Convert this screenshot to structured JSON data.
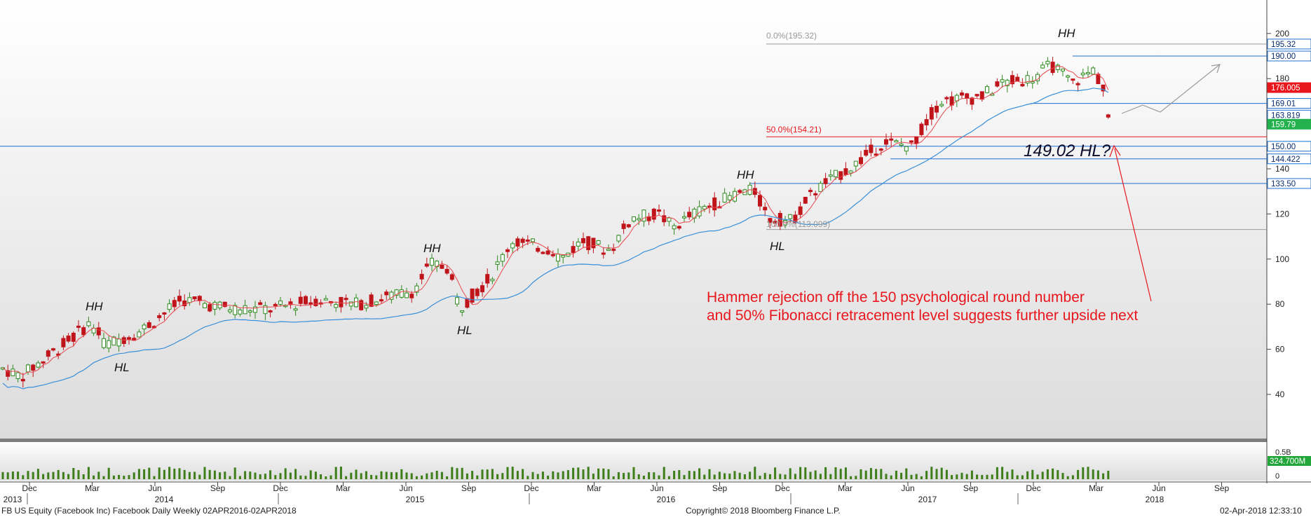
{
  "chart_data": {
    "type": "candlestick",
    "title": "FB US Equity (Facebook Inc) Facebook Daily  Weekly 02APR2016-02APR2018",
    "ylim": [
      20,
      210
    ],
    "y_ticks": [
      40,
      60,
      80,
      100,
      120,
      140,
      160,
      180,
      200
    ],
    "volume_ticks": [
      "0.5B",
      "0"
    ],
    "volume_label": "324.700M",
    "x_month_labels": [
      "Dec",
      "Mar",
      "Jun",
      "Sep",
      "Dec",
      "Mar",
      "Jun",
      "Sep",
      "Dec",
      "Mar",
      "Jun",
      "Sep",
      "Dec",
      "Mar",
      "Jun",
      "Sep",
      "Dec",
      "Mar",
      "Jun",
      "Sep"
    ],
    "x_year_labels": [
      "2013",
      "2014",
      "2015",
      "2016",
      "2017",
      "2018"
    ],
    "price_levels": [
      {
        "label": "195.32",
        "value": 195.32,
        "color": "#1f6fd1"
      },
      {
        "label": "190.00",
        "value": 190.0,
        "color": "#1f6fd1"
      },
      {
        "label": "176.005",
        "value": 176.005,
        "color": "#e8171d"
      },
      {
        "label": "169.01",
        "value": 169.01,
        "color": "#1f6fd1"
      },
      {
        "label": "163.819",
        "value": 163.819,
        "color": "#1f6fd1"
      },
      {
        "label": "159.79",
        "value": 159.79,
        "color": "#22b14c"
      },
      {
        "label": "150.00",
        "value": 150.0,
        "color": "#1f6fd1"
      },
      {
        "label": "144.422",
        "value": 144.422,
        "color": "#1f6fd1"
      },
      {
        "label": "133.50",
        "value": 133.5,
        "color": "#1f6fd1"
      }
    ],
    "fib_labels": {
      "top": "0.0%(195.32)",
      "mid": "50.0%(154.21)",
      "low": "100.0%(113.099)"
    },
    "pattern_labels": [
      "HH",
      "HL",
      "HH",
      "HL",
      "HH",
      "HL",
      "HH"
    ],
    "hl_question": "149.02 HL?",
    "annotation_lines": [
      "Hammer rejection off the 150 psychological round number",
      "and 50% Fibonacci retracement level suggests further upside next"
    ],
    "ema_fast_color": "#e8474d",
    "ema_slow_color": "#3a8fd9",
    "up_color": "#2f8a1f",
    "down_color": "#c0141b"
  },
  "footer": {
    "left": "FB US Equity (Facebook Inc) Facebook Daily  Weekly 02APR2016-02APR2018",
    "center": "Copyright© 2018 Bloomberg Finance L.P.",
    "right": "02-Apr-2018 12:33:10"
  }
}
